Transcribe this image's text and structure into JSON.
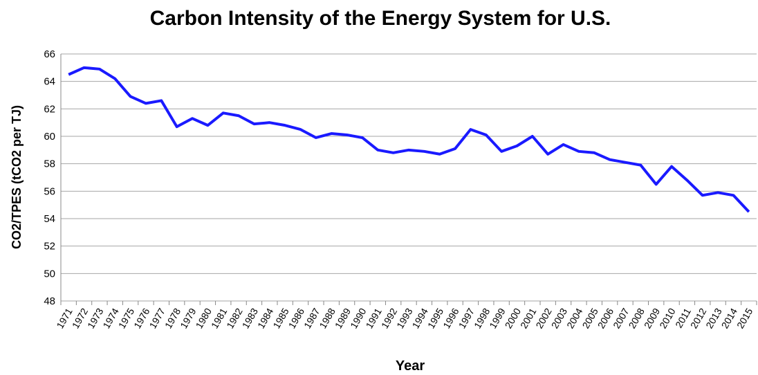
{
  "chart_data": {
    "type": "line",
    "title": "Carbon Intensity of the Energy System for U.S.",
    "x_label": "Year",
    "y_label": "CO2/TPES (tCO2 per TJ)",
    "categories": [
      "1971",
      "1972",
      "1973",
      "1974",
      "1975",
      "1976",
      "1977",
      "1978",
      "1979",
      "1980",
      "1981",
      "1982",
      "1983",
      "1984",
      "1985",
      "1986",
      "1987",
      "1988",
      "1989",
      "1990",
      "1991",
      "1992",
      "1993",
      "1994",
      "1995",
      "1996",
      "1997",
      "1998",
      "1999",
      "2000",
      "2001",
      "2002",
      "2003",
      "2004",
      "2005",
      "2006",
      "2007",
      "2008",
      "2009",
      "2010",
      "2011",
      "2012",
      "2013",
      "2014",
      "2015"
    ],
    "series": [
      {
        "name": "CO2/TPES",
        "color": "#1a1aff",
        "values": [
          64.5,
          65.0,
          64.9,
          64.2,
          62.9,
          62.4,
          62.6,
          60.7,
          61.3,
          60.8,
          61.7,
          61.5,
          60.9,
          61.0,
          60.8,
          60.5,
          59.9,
          60.2,
          60.1,
          59.9,
          59.0,
          58.8,
          59.0,
          58.9,
          58.7,
          59.1,
          60.5,
          60.1,
          58.9,
          59.3,
          60.0,
          58.7,
          59.4,
          58.9,
          58.8,
          58.3,
          58.1,
          57.9,
          56.5,
          57.8,
          56.8,
          55.7,
          55.9,
          55.7,
          54.5
        ]
      }
    ],
    "ylim": [
      48,
      66
    ],
    "yticks": [
      48,
      50,
      52,
      54,
      56,
      58,
      60,
      62,
      64,
      66
    ],
    "grid": true
  }
}
